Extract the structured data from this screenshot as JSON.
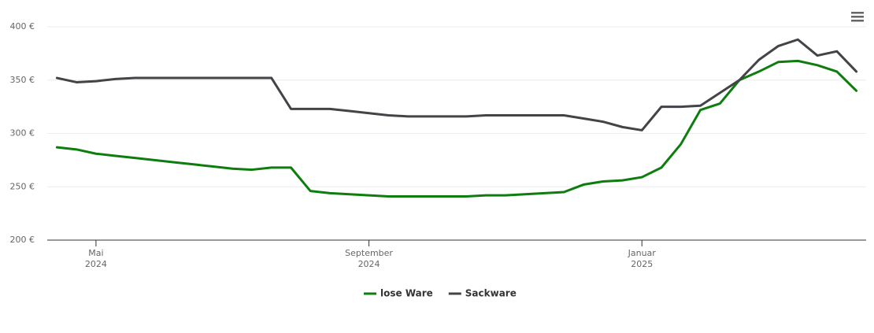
{
  "chart_data": {
    "type": "line",
    "categories": [
      null,
      null,
      "Mai\n2024",
      null,
      null,
      null,
      null,
      null,
      null,
      null,
      null,
      null,
      null,
      null,
      null,
      null,
      "September\n2024",
      null,
      null,
      null,
      null,
      null,
      null,
      null,
      null,
      null,
      null,
      null,
      null,
      null,
      "Januar\n2025",
      null,
      null,
      null,
      null,
      null,
      null,
      null,
      null,
      null,
      null,
      null
    ],
    "series": [
      {
        "name": "lose Ware",
        "color": "#0e7d0e",
        "values": [
          287,
          285,
          281,
          279,
          277,
          275,
          273,
          271,
          269,
          267,
          266,
          268,
          268,
          246,
          244,
          243,
          242,
          241,
          241,
          241,
          241,
          241,
          242,
          242,
          243,
          244,
          245,
          252,
          255,
          256,
          259,
          268,
          290,
          322,
          328,
          350,
          358,
          367,
          368,
          364,
          358,
          340
        ]
      },
      {
        "name": "Sackware",
        "color": "#434348",
        "values": [
          352,
          348,
          349,
          351,
          352,
          352,
          352,
          352,
          352,
          352,
          352,
          352,
          323,
          323,
          323,
          321,
          319,
          317,
          316,
          316,
          316,
          316,
          317,
          317,
          317,
          317,
          317,
          314,
          311,
          306,
          303,
          325,
          325,
          326,
          338,
          350,
          369,
          382,
          388,
          373,
          377,
          358
        ]
      }
    ],
    "ylim": [
      200,
      400
    ],
    "yticks": [
      {
        "value": 200,
        "label": "200 €"
      },
      {
        "value": 250,
        "label": "250 €"
      },
      {
        "value": 300,
        "label": "300 €"
      },
      {
        "value": 350,
        "label": "350 €"
      },
      {
        "value": 400,
        "label": "400 €"
      }
    ],
    "grid": true,
    "legend": "bottom"
  }
}
